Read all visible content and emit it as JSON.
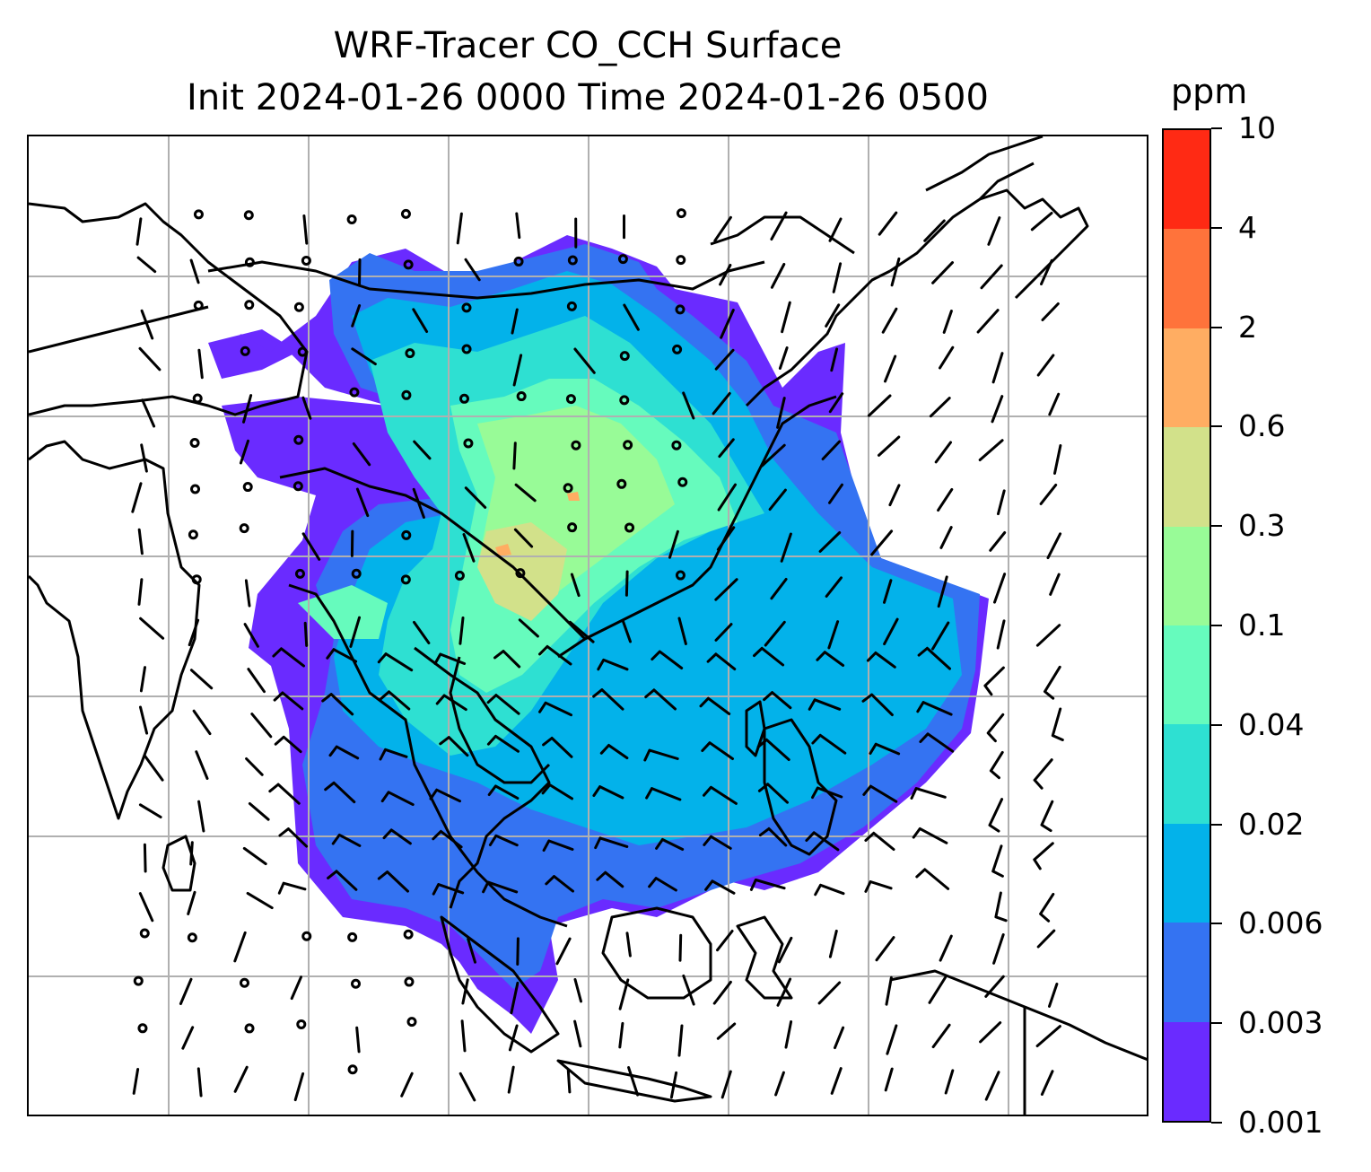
{
  "title": {
    "line1": "WRF-Tracer CO_CCH Surface",
    "line2": "Init 2024-01-26 0000 Time 2024-01-26 0500"
  },
  "colorbar": {
    "unit": "ppm",
    "levels": [
      "0.001",
      "0.003",
      "0.006",
      "0.02",
      "0.04",
      "0.1",
      "0.3",
      "0.6",
      "2",
      "4",
      "10"
    ],
    "colors": [
      "#6a2bff",
      "#3473f2",
      "#03b2ea",
      "#2ee0d2",
      "#66fbbd",
      "#98fb97",
      "#d2e18a",
      "#ffad62",
      "#ff733b",
      "#ff2a14"
    ]
  },
  "map": {
    "gridlines": true,
    "gridline_color": "#b0b0b0",
    "coastline_color": "#000000",
    "field_colors": {
      "outer": "#6a2bff",
      "low": "#3473f2",
      "mid": "#03b2ea",
      "teal": "#2ee0d2",
      "green": "#66fbbd",
      "lime": "#98fb97",
      "olive": "#d2e18a",
      "orange": "#ffad62"
    }
  }
}
